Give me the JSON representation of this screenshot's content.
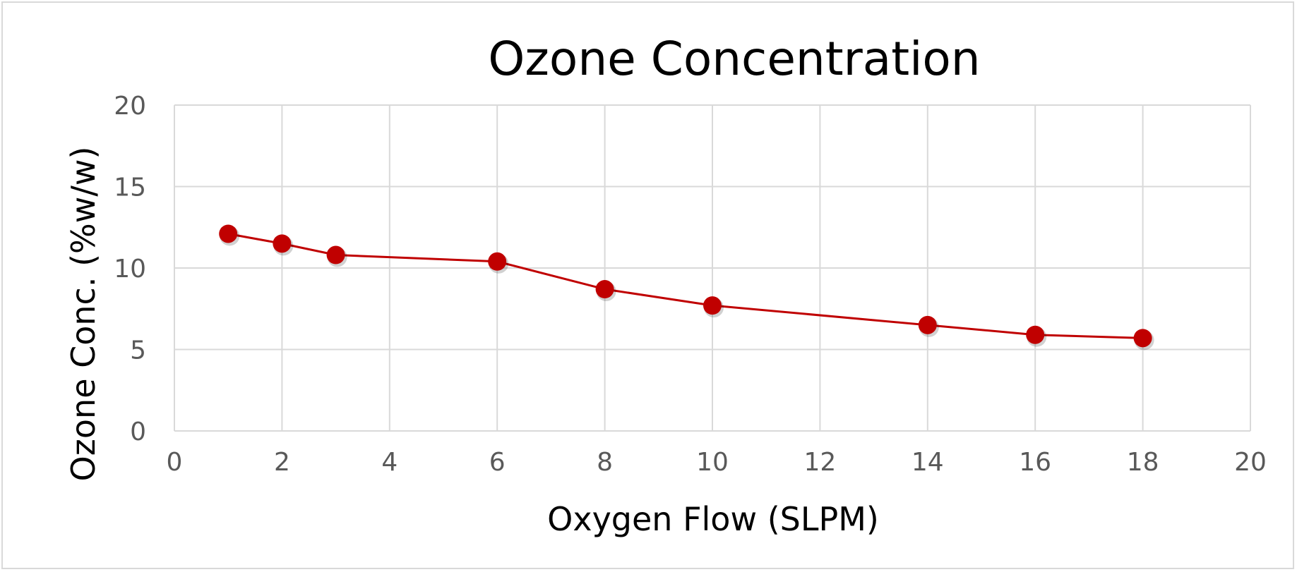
{
  "chart_data": {
    "type": "line",
    "title": "Ozone Concentration",
    "xlabel": "Oxygen Flow (SLPM)",
    "ylabel": "Ozone Conc. (%w/w)",
    "xlim": [
      0,
      20
    ],
    "ylim": [
      0,
      20
    ],
    "x_ticks": [
      "0",
      "2",
      "4",
      "6",
      "8",
      "10",
      "12",
      "14",
      "16",
      "18",
      "20"
    ],
    "y_ticks": [
      "0",
      "5",
      "10",
      "15",
      "20"
    ],
    "grid": true,
    "legend": "none",
    "series": [
      {
        "color": "#c00000",
        "marker": "circle",
        "x": [
          1,
          2,
          3,
          6,
          8,
          10,
          14,
          16,
          18
        ],
        "y": [
          12.1,
          11.5,
          10.8,
          10.4,
          8.7,
          7.7,
          6.5,
          5.9,
          5.7
        ]
      }
    ]
  }
}
